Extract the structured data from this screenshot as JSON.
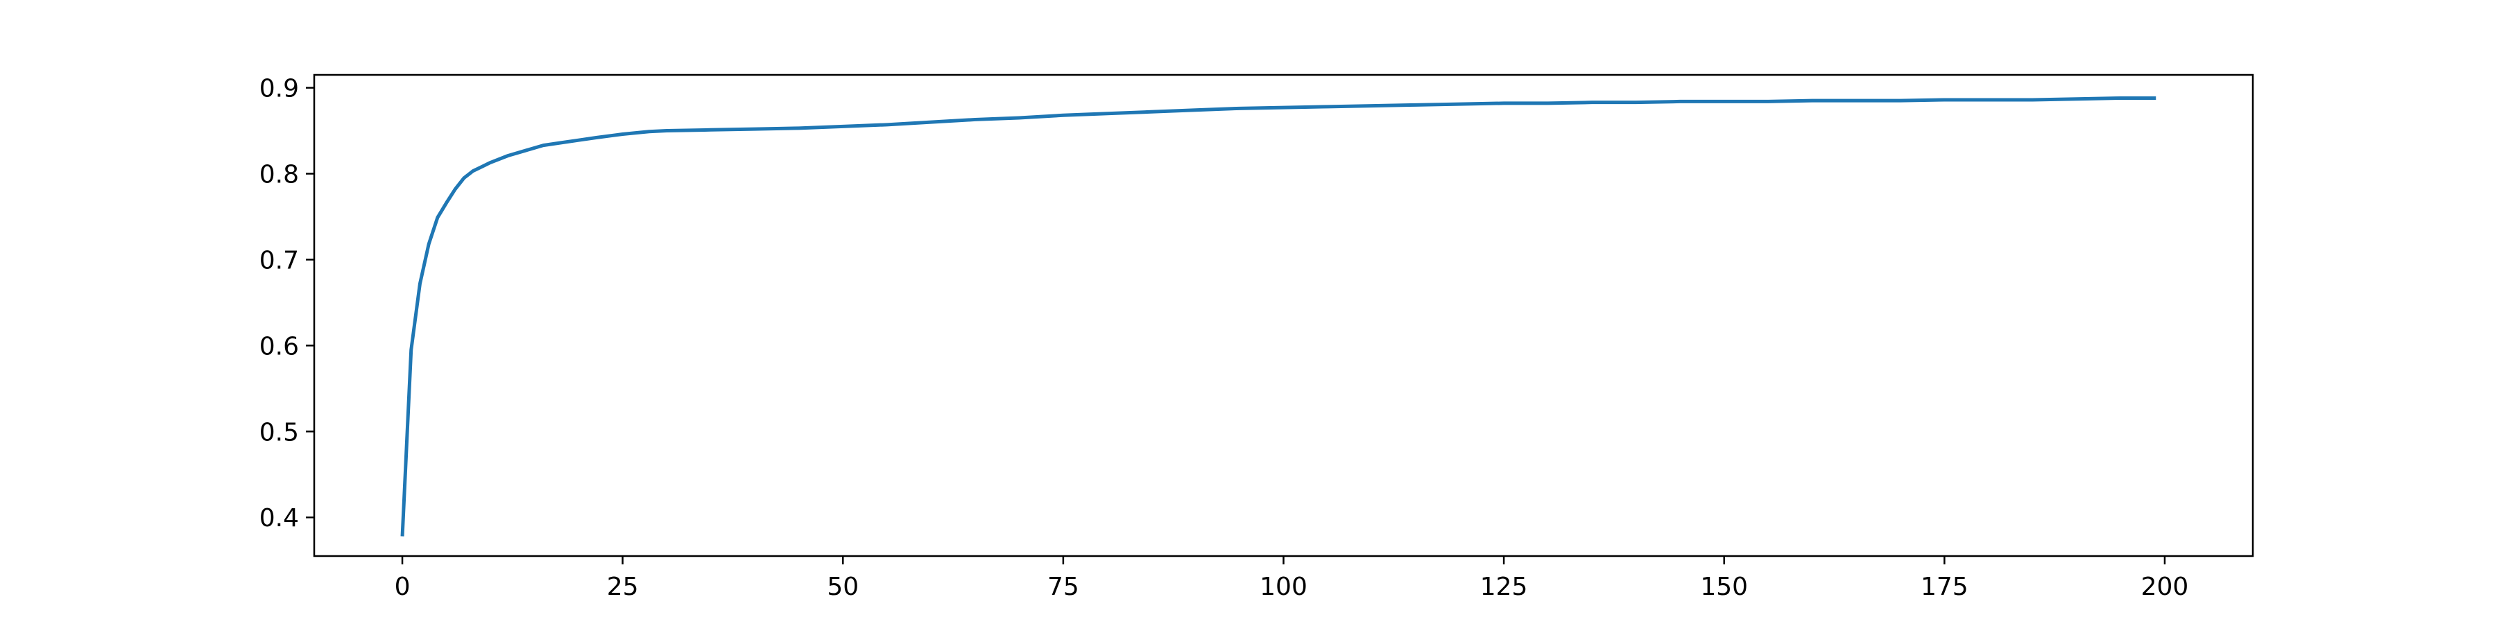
{
  "chart_data": {
    "type": "line",
    "title": "",
    "xlabel": "",
    "ylabel": "",
    "xlim": [
      -10,
      210
    ],
    "ylim": [
      0.355,
      0.915
    ],
    "grid": false,
    "legend": "none",
    "x_ticks": [
      0,
      25,
      50,
      75,
      100,
      125,
      150,
      175,
      200
    ],
    "x_tick_labels": [
      "0",
      "25",
      "50",
      "75",
      "100",
      "125",
      "150",
      "175",
      "200"
    ],
    "y_ticks": [
      0.4,
      0.5,
      0.6,
      0.7,
      0.8,
      0.9
    ],
    "y_tick_labels": [
      "0.4",
      "0.5",
      "0.6",
      "0.7",
      "0.8",
      "0.9"
    ],
    "series": [
      {
        "color": "#1f77b4",
        "x": [
          0,
          1,
          2,
          3,
          4,
          5,
          6,
          7,
          8,
          9,
          10,
          12,
          14,
          16,
          18,
          20,
          22,
          25,
          28,
          30,
          35,
          40,
          45,
          50,
          55,
          60,
          65,
          70,
          75,
          80,
          85,
          90,
          95,
          100,
          105,
          110,
          115,
          120,
          125,
          130,
          135,
          140,
          145,
          150,
          155,
          160,
          165,
          170,
          175,
          180,
          185,
          190,
          195,
          199
        ],
        "y": [
          0.378,
          0.595,
          0.672,
          0.718,
          0.749,
          0.766,
          0.782,
          0.795,
          0.803,
          0.808,
          0.813,
          0.821,
          0.827,
          0.833,
          0.836,
          0.839,
          0.842,
          0.846,
          0.849,
          0.85,
          0.851,
          0.852,
          0.853,
          0.855,
          0.857,
          0.86,
          0.863,
          0.865,
          0.868,
          0.87,
          0.872,
          0.874,
          0.876,
          0.877,
          0.878,
          0.879,
          0.88,
          0.881,
          0.882,
          0.882,
          0.883,
          0.883,
          0.884,
          0.884,
          0.884,
          0.885,
          0.885,
          0.885,
          0.886,
          0.886,
          0.886,
          0.887,
          0.888,
          0.888
        ]
      }
    ]
  }
}
